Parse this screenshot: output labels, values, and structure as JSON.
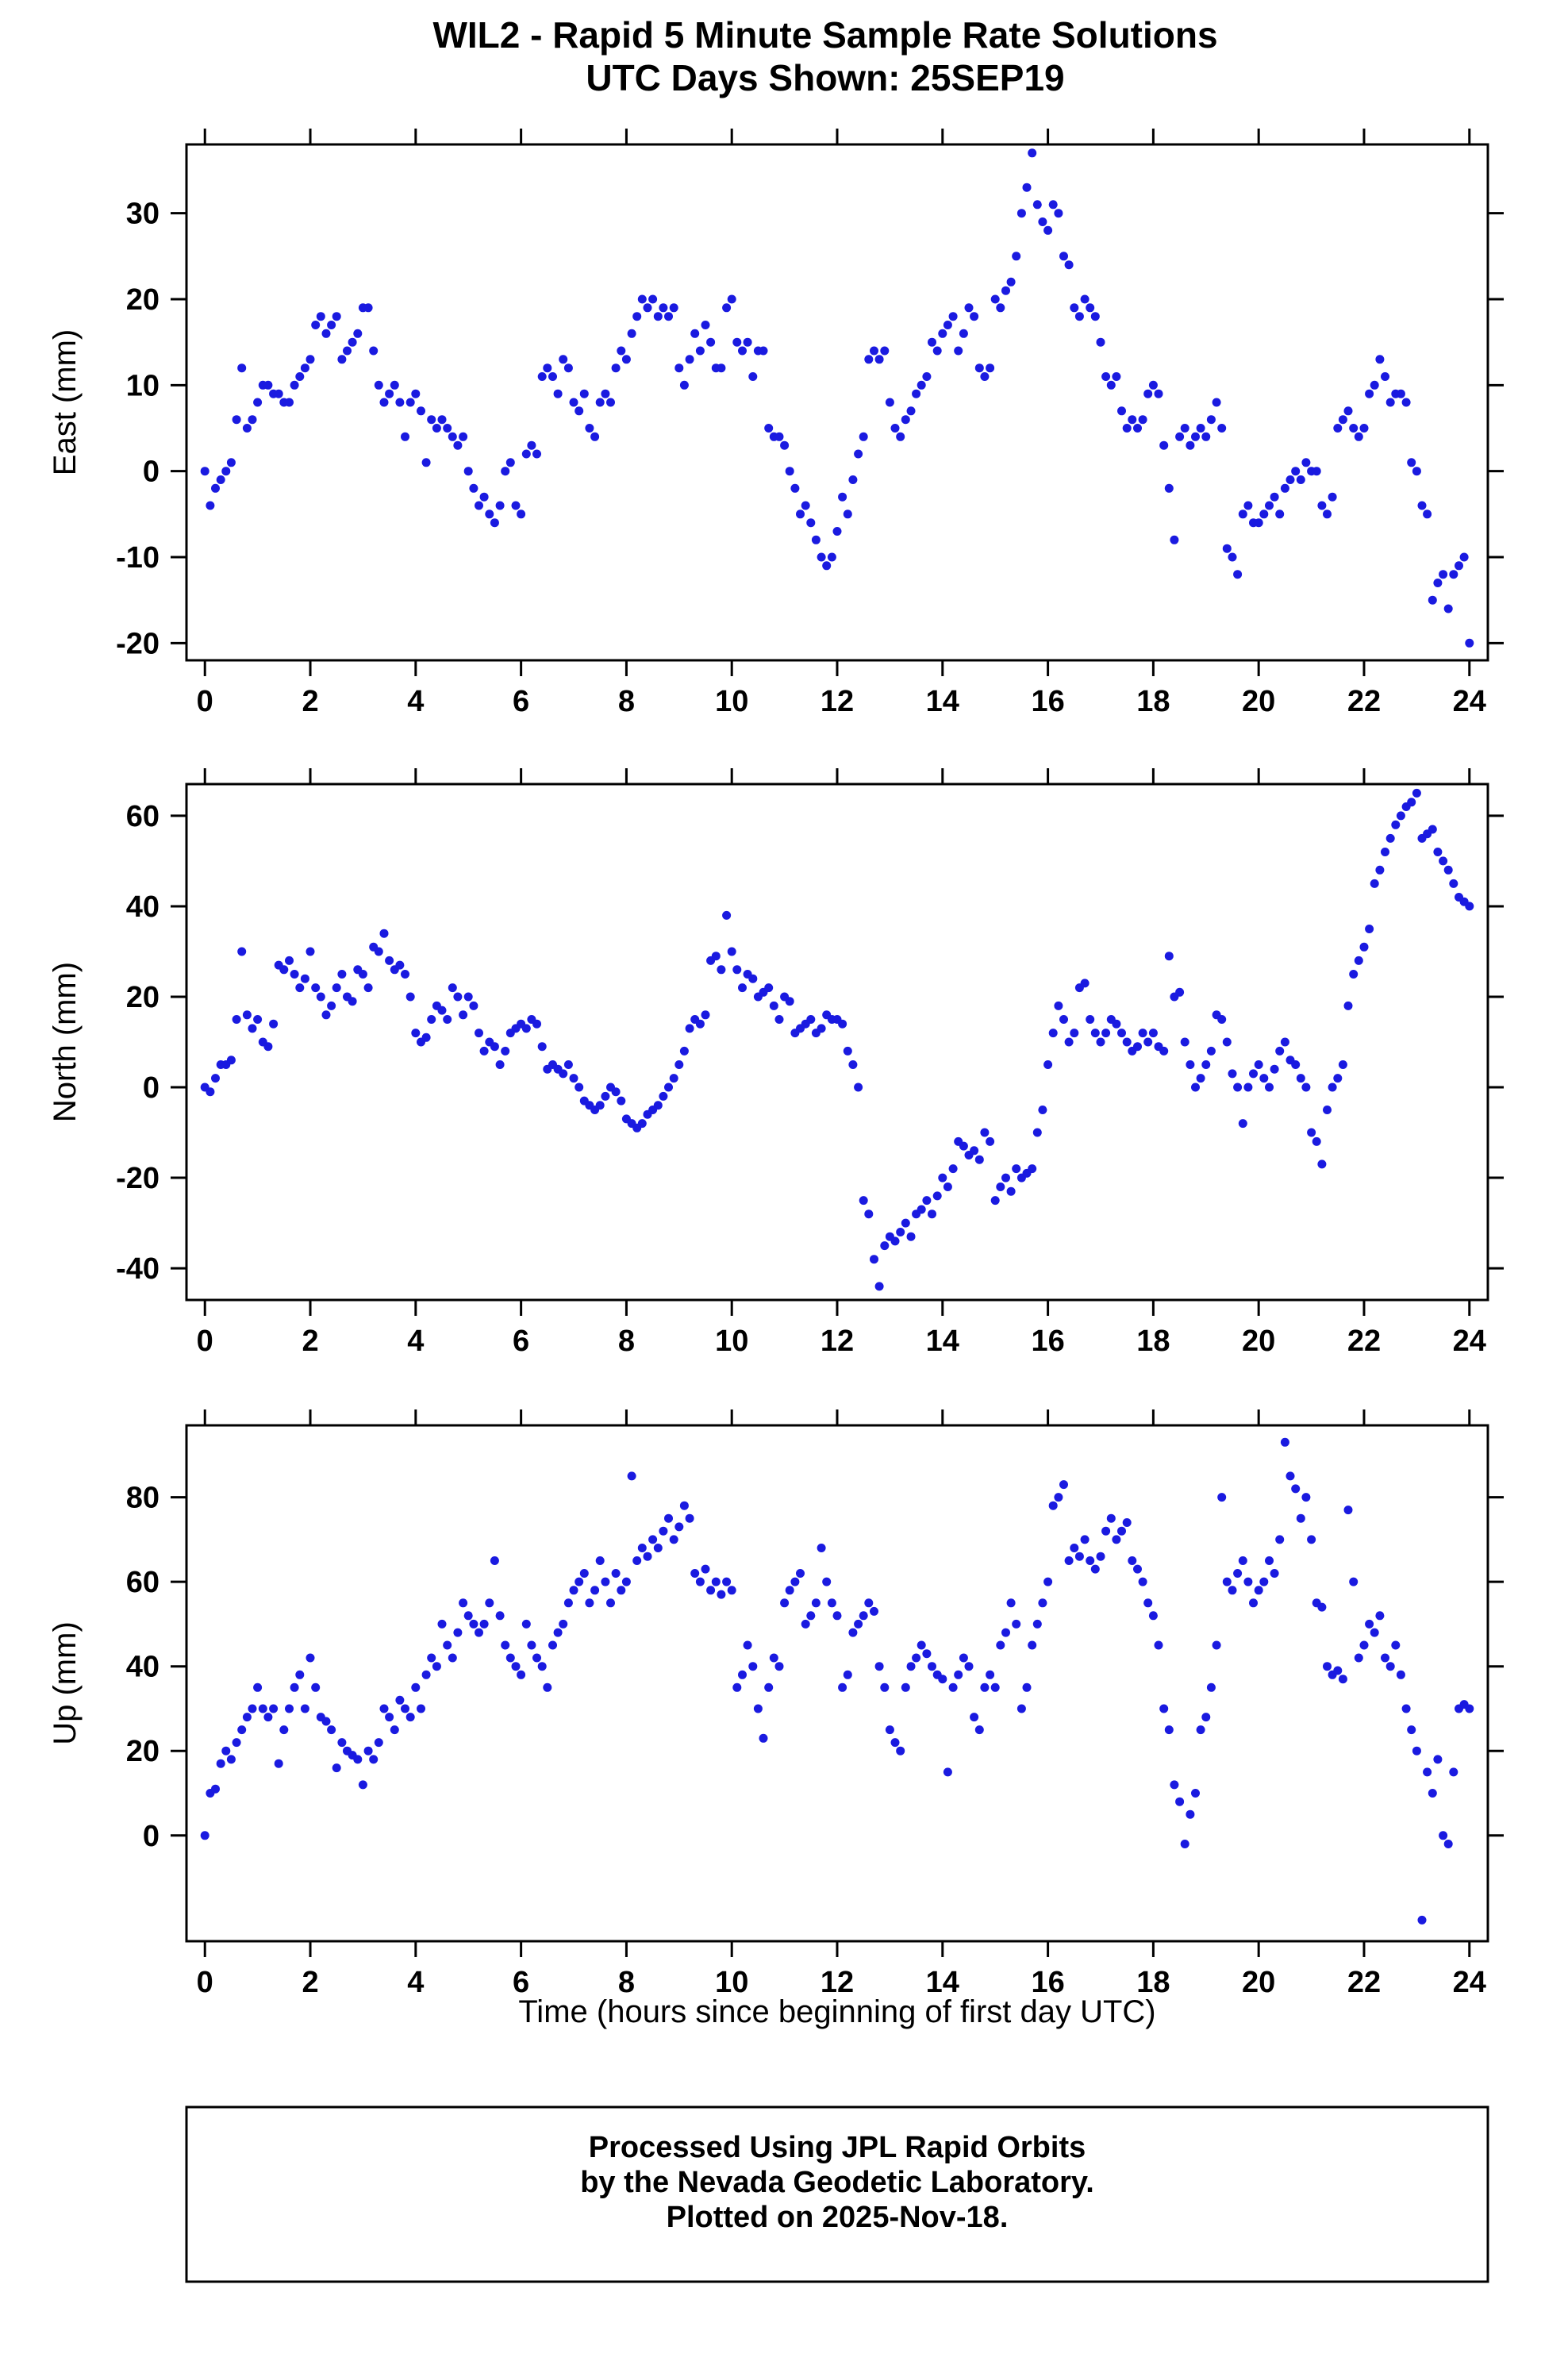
{
  "title": {
    "line1": "WIL2 - Rapid 5 Minute Sample Rate Solutions",
    "line2": "UTC Days Shown:  25SEP19"
  },
  "xlabel": "Time (hours since beginning of first day UTC)",
  "footer": {
    "line1": "Processed Using JPL Rapid Orbits",
    "line2": "by the Nevada Geodetic Laboratory.",
    "line3": "Plotted on 2025-Nov-18."
  },
  "style": {
    "point_color": "#1a1ae0",
    "frame_color": "#000000"
  },
  "chart_data": [
    {
      "type": "scatter",
      "name": "East",
      "ylabel": "East (mm)",
      "x_range": [
        -0.35,
        24.35
      ],
      "y_range": [
        -22,
        38
      ],
      "x_ticks": [
        0,
        2,
        4,
        6,
        8,
        10,
        12,
        14,
        16,
        18,
        20,
        22,
        24
      ],
      "y_ticks": [
        -20,
        -10,
        0,
        10,
        20,
        30
      ],
      "x_start": 0,
      "x_step": 0.1,
      "values": [
        0,
        -4,
        -2,
        -1,
        0,
        1,
        6,
        12,
        5,
        6,
        8,
        10,
        10,
        9,
        9,
        8,
        8,
        10,
        11,
        12,
        13,
        17,
        18,
        16,
        17,
        18,
        13,
        14,
        15,
        16,
        19,
        19,
        14,
        10,
        8,
        9,
        10,
        8,
        4,
        8,
        9,
        7,
        1,
        6,
        5,
        6,
        5,
        4,
        3,
        4,
        0,
        -2,
        -4,
        -3,
        -5,
        -6,
        -4,
        0,
        1,
        -4,
        -5,
        2,
        3,
        2,
        11,
        12,
        11,
        9,
        13,
        12,
        8,
        7,
        9,
        5,
        4,
        8,
        9,
        8,
        12,
        14,
        13,
        16,
        18,
        20,
        19,
        20,
        18,
        19,
        18,
        19,
        12,
        10,
        13,
        16,
        14,
        17,
        15,
        12,
        12,
        19,
        20,
        15,
        14,
        15,
        11,
        14,
        14,
        5,
        4,
        4,
        3,
        0,
        -2,
        -5,
        -4,
        -6,
        -8,
        -10,
        -11,
        -10,
        -7,
        -3,
        -5,
        -1,
        2,
        4,
        13,
        14,
        13,
        14,
        8,
        5,
        4,
        6,
        7,
        9,
        10,
        11,
        15,
        14,
        16,
        17,
        18,
        14,
        16,
        19,
        18,
        12,
        11,
        12,
        20,
        19,
        21,
        22,
        25,
        30,
        33,
        37,
        31,
        29,
        28,
        31,
        30,
        25,
        24,
        19,
        18,
        20,
        19,
        18,
        15,
        11,
        10,
        11,
        7,
        5,
        6,
        5,
        6,
        9,
        10,
        9,
        3,
        -2,
        -8,
        4,
        5,
        3,
        4,
        5,
        4,
        6,
        8,
        5,
        -9,
        -10,
        -12,
        -5,
        -4,
        -6,
        -6,
        -5,
        -4,
        -3,
        -5,
        -2,
        -1,
        0,
        -1,
        1,
        0,
        0,
        -4,
        -5,
        -3,
        5,
        6,
        7,
        5,
        4,
        5,
        9,
        10,
        13,
        11,
        8,
        9,
        9,
        8,
        1,
        0,
        -4,
        -5,
        -15,
        -13,
        -12,
        -16,
        -12,
        -11,
        -10,
        -20
      ]
    },
    {
      "type": "scatter",
      "name": "North",
      "ylabel": "North (mm)",
      "x_range": [
        -0.35,
        24.35
      ],
      "y_range": [
        -47,
        67
      ],
      "x_ticks": [
        0,
        2,
        4,
        6,
        8,
        10,
        12,
        14,
        16,
        18,
        20,
        22,
        24
      ],
      "y_ticks": [
        -40,
        -20,
        0,
        20,
        40,
        60
      ],
      "x_start": 0,
      "x_step": 0.1,
      "values": [
        0,
        -1,
        2,
        5,
        5,
        6,
        15,
        30,
        16,
        13,
        15,
        10,
        9,
        14,
        27,
        26,
        28,
        25,
        22,
        24,
        30,
        22,
        20,
        16,
        18,
        22,
        25,
        20,
        19,
        26,
        25,
        22,
        31,
        30,
        34,
        28,
        26,
        27,
        25,
        20,
        12,
        10,
        11,
        15,
        18,
        17,
        15,
        22,
        20,
        16,
        20,
        18,
        12,
        8,
        10,
        9,
        5,
        8,
        12,
        13,
        14,
        13,
        15,
        14,
        9,
        4,
        5,
        4,
        3,
        5,
        2,
        0,
        -3,
        -4,
        -5,
        -4,
        -2,
        0,
        -1,
        -3,
        -7,
        -8,
        -9,
        -8,
        -6,
        -5,
        -4,
        -2,
        0,
        2,
        5,
        8,
        13,
        15,
        14,
        16,
        28,
        29,
        26,
        38,
        30,
        26,
        22,
        25,
        24,
        20,
        21,
        22,
        18,
        15,
        20,
        19,
        12,
        13,
        14,
        15,
        12,
        13,
        16,
        15,
        15,
        14,
        8,
        5,
        0,
        -25,
        -28,
        -38,
        -44,
        -35,
        -33,
        -34,
        -32,
        -30,
        -33,
        -28,
        -27,
        -25,
        -28,
        -24,
        -20,
        -22,
        -18,
        -12,
        -13,
        -15,
        -14,
        -16,
        -10,
        -12,
        -25,
        -22,
        -20,
        -23,
        -18,
        -20,
        -19,
        -18,
        -10,
        -5,
        5,
        12,
        18,
        15,
        10,
        12,
        22,
        23,
        15,
        12,
        10,
        12,
        15,
        14,
        12,
        10,
        8,
        9,
        12,
        10,
        12,
        9,
        8,
        29,
        20,
        21,
        10,
        5,
        0,
        2,
        5,
        8,
        16,
        15,
        10,
        3,
        0,
        -8,
        0,
        3,
        5,
        2,
        0,
        4,
        8,
        10,
        6,
        5,
        2,
        0,
        -10,
        -12,
        -17,
        -5,
        0,
        2,
        5,
        18,
        25,
        28,
        31,
        35,
        45,
        48,
        52,
        55,
        58,
        60,
        62,
        63,
        65,
        55,
        56,
        57,
        52,
        50,
        48,
        45,
        42,
        41,
        40
      ]
    },
    {
      "type": "scatter",
      "name": "Up",
      "ylabel": "Up (mm)",
      "x_range": [
        -0.35,
        24.35
      ],
      "y_range": [
        -25,
        97
      ],
      "x_ticks": [
        0,
        2,
        4,
        6,
        8,
        10,
        12,
        14,
        16,
        18,
        20,
        22,
        24
      ],
      "y_ticks": [
        0,
        20,
        40,
        60,
        80
      ],
      "x_start": 0,
      "x_step": 0.1,
      "values": [
        0,
        10,
        11,
        17,
        20,
        18,
        22,
        25,
        28,
        30,
        35,
        30,
        28,
        30,
        17,
        25,
        30,
        35,
        38,
        30,
        42,
        35,
        28,
        27,
        25,
        16,
        22,
        20,
        19,
        18,
        12,
        20,
        18,
        22,
        30,
        28,
        25,
        32,
        30,
        28,
        35,
        30,
        38,
        42,
        40,
        50,
        45,
        42,
        48,
        55,
        52,
        50,
        48,
        50,
        55,
        65,
        52,
        45,
        42,
        40,
        38,
        50,
        45,
        42,
        40,
        35,
        45,
        48,
        50,
        55,
        58,
        60,
        62,
        55,
        58,
        65,
        60,
        55,
        62,
        58,
        60,
        85,
        65,
        68,
        66,
        70,
        68,
        72,
        75,
        70,
        73,
        78,
        75,
        62,
        60,
        63,
        58,
        60,
        57,
        60,
        58,
        35,
        38,
        45,
        40,
        30,
        23,
        35,
        42,
        40,
        55,
        58,
        60,
        62,
        50,
        52,
        55,
        68,
        60,
        55,
        52,
        35,
        38,
        48,
        50,
        52,
        55,
        53,
        40,
        35,
        25,
        22,
        20,
        35,
        40,
        42,
        45,
        43,
        40,
        38,
        37,
        15,
        35,
        38,
        42,
        40,
        28,
        25,
        35,
        38,
        35,
        45,
        48,
        55,
        50,
        30,
        35,
        45,
        50,
        55,
        60,
        78,
        80,
        83,
        65,
        68,
        66,
        70,
        65,
        63,
        66,
        72,
        75,
        70,
        72,
        74,
        65,
        63,
        60,
        55,
        52,
        45,
        30,
        25,
        12,
        8,
        -2,
        5,
        10,
        25,
        28,
        35,
        45,
        80,
        60,
        58,
        62,
        65,
        60,
        55,
        58,
        60,
        65,
        62,
        70,
        93,
        85,
        82,
        75,
        80,
        70,
        55,
        54,
        40,
        38,
        39,
        37,
        77,
        60,
        42,
        45,
        50,
        48,
        52,
        42,
        40,
        45,
        38,
        30,
        25,
        20,
        -20,
        15,
        10,
        18,
        0,
        -2,
        15,
        30,
        31,
        30
      ]
    }
  ]
}
